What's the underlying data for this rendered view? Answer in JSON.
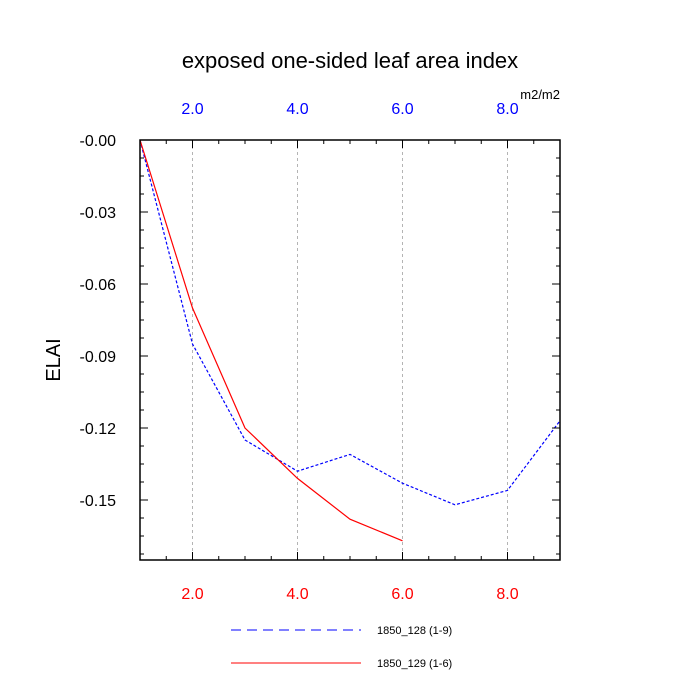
{
  "chart_data": {
    "type": "line",
    "title": "exposed one-sided leaf area index",
    "ylabel": "ELAI",
    "units": "m2/m2",
    "xlim": [
      1,
      9
    ],
    "ylim": [
      -0.175,
      0.0
    ],
    "grid": "vertical dashed at major x ticks",
    "x_tick_values": [
      2,
      4,
      6,
      8
    ],
    "x_tick_labels": [
      "2.0",
      "4.0",
      "6.0",
      "8.0"
    ],
    "y_tick_values": [
      0,
      -0.03,
      -0.06,
      -0.09,
      -0.12,
      -0.15
    ],
    "y_tick_labels": [
      "-0.00",
      "-0.03",
      "-0.06",
      "-0.09",
      "-0.12",
      "-0.15"
    ],
    "bottom_axis_color": "#ff0000",
    "top_axis_color": "#0000ff",
    "legend_position": "bottom",
    "series": [
      {
        "name": "1850_128 (1-9)",
        "color": "#0000ff",
        "dash": "dashed",
        "x": [
          1,
          2,
          3,
          4,
          5,
          6,
          7,
          8,
          9
        ],
        "y": [
          0.0,
          -0.085,
          -0.125,
          -0.138,
          -0.131,
          -0.143,
          -0.152,
          -0.146,
          -0.117
        ]
      },
      {
        "name": "1850_129 (1-6)",
        "color": "#ff0000",
        "dash": "solid",
        "x": [
          1,
          2,
          3,
          4,
          5,
          6
        ],
        "y": [
          0.0,
          -0.07,
          -0.12,
          -0.141,
          -0.158,
          -0.167
        ]
      }
    ]
  }
}
